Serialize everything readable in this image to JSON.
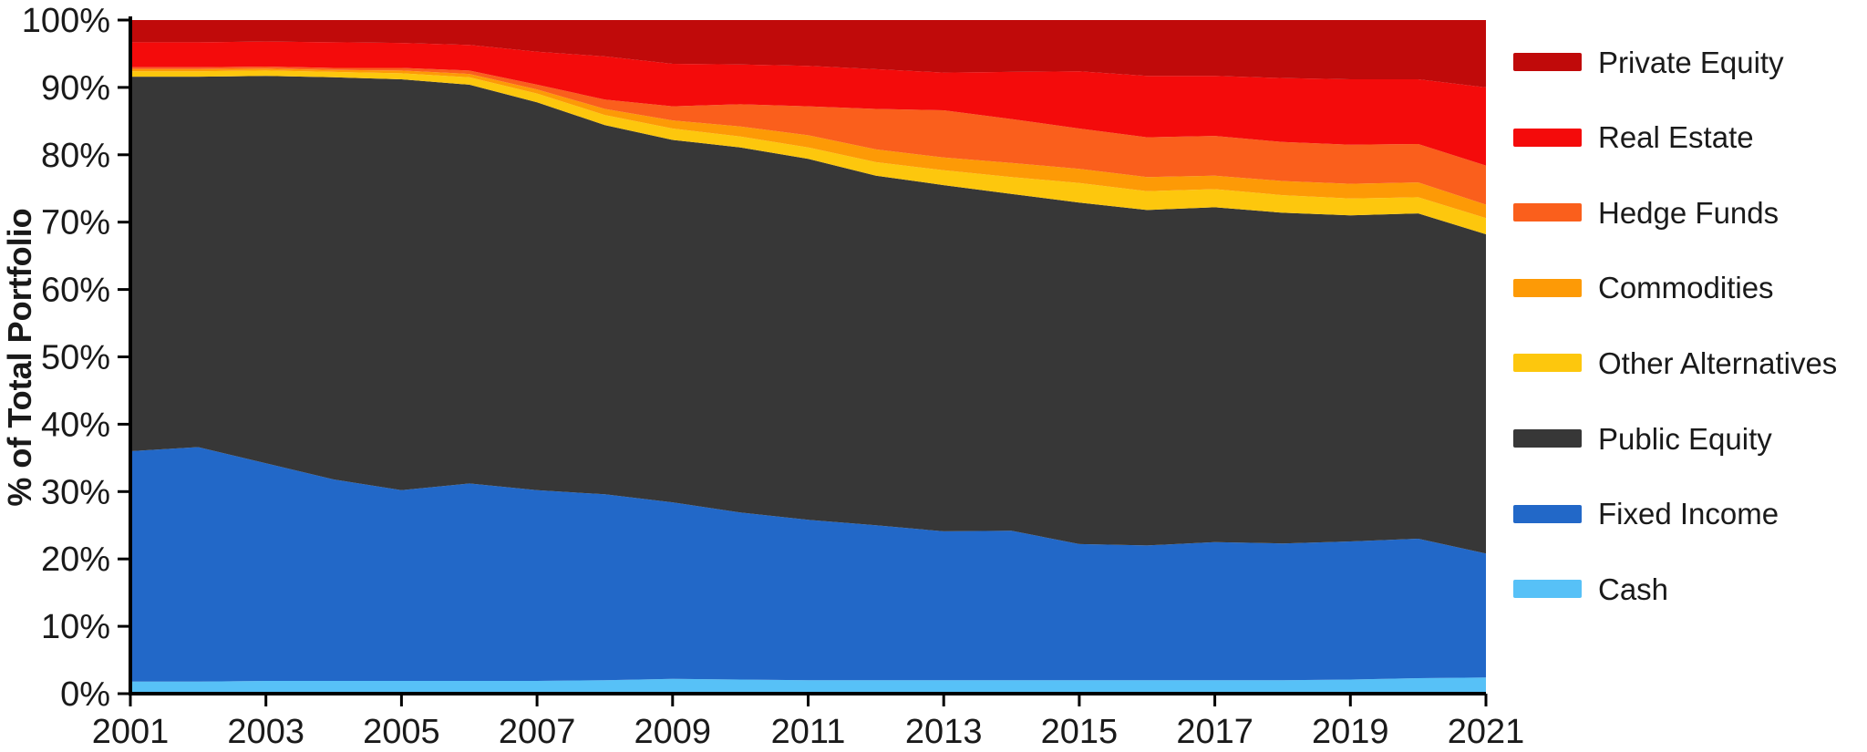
{
  "chart_data": {
    "type": "area",
    "stacked": true,
    "title": "",
    "ylabel": "% of Total Portfolio",
    "ylim": [
      0,
      100
    ],
    "ytick_step": 10,
    "ytick_suffix": "%",
    "grid": false,
    "legend_position": "right",
    "x": [
      2001,
      2002,
      2003,
      2004,
      2005,
      2006,
      2007,
      2008,
      2009,
      2010,
      2011,
      2012,
      2013,
      2014,
      2015,
      2016,
      2017,
      2018,
      2019,
      2020,
      2021
    ],
    "xtick_labels": [
      "2001",
      "2003",
      "2005",
      "2007",
      "2009",
      "2011",
      "2013",
      "2015",
      "2017",
      "2019",
      "2021"
    ],
    "series_bottom_to_top": [
      {
        "name": "Cash",
        "color": "#57C1F7",
        "values": [
          1.8,
          1.8,
          1.9,
          1.9,
          1.9,
          1.9,
          1.9,
          2.0,
          2.2,
          2.1,
          2.0,
          2.0,
          2.0,
          2.0,
          2.0,
          2.0,
          2.0,
          2.0,
          2.1,
          2.3,
          2.4
        ]
      },
      {
        "name": "Fixed Income",
        "color": "#2268C8",
        "values": [
          34.2,
          34.8,
          32.3,
          29.9,
          28.3,
          29.3,
          28.3,
          27.6,
          26.2,
          24.8,
          23.8,
          23.0,
          22.1,
          22.2,
          20.2,
          20.0,
          20.5,
          20.3,
          20.5,
          20.7,
          18.4
        ]
      },
      {
        "name": "Public Equity",
        "color": "#373737",
        "values": [
          55.6,
          55.0,
          57.5,
          59.7,
          61.0,
          59.2,
          57.6,
          54.8,
          53.8,
          54.2,
          53.6,
          51.9,
          51.4,
          50.0,
          50.7,
          49.8,
          49.7,
          49.1,
          48.4,
          48.3,
          47.4
        ]
      },
      {
        "name": "Other Alternatives",
        "color": "#FDC70D",
        "values": [
          0.8,
          0.8,
          0.8,
          0.8,
          0.9,
          1.1,
          1.3,
          1.5,
          1.7,
          1.6,
          1.7,
          2.0,
          2.2,
          2.5,
          2.9,
          2.8,
          2.7,
          2.6,
          2.5,
          2.4,
          2.4
        ]
      },
      {
        "name": "Commodities",
        "color": "#FD9A06",
        "values": [
          0.3,
          0.3,
          0.3,
          0.3,
          0.4,
          0.5,
          0.6,
          0.9,
          1.2,
          1.5,
          1.8,
          1.9,
          1.9,
          2.1,
          2.1,
          2.1,
          2.0,
          2.1,
          2.2,
          2.2,
          2.0
        ]
      },
      {
        "name": "Hedge Funds",
        "color": "#FA5F1C",
        "values": [
          0.3,
          0.3,
          0.3,
          0.3,
          0.4,
          0.5,
          0.7,
          1.4,
          2.1,
          3.3,
          4.3,
          6.0,
          7.0,
          6.5,
          6.0,
          5.9,
          5.9,
          5.8,
          5.8,
          5.7,
          5.8
        ]
      },
      {
        "name": "Real Estate",
        "color": "#F40B0B",
        "values": [
          3.7,
          3.7,
          3.7,
          3.8,
          3.7,
          3.8,
          4.9,
          6.4,
          6.3,
          5.9,
          6.0,
          5.9,
          5.6,
          7.0,
          8.5,
          9.1,
          8.9,
          9.5,
          9.7,
          9.6,
          11.6
        ]
      },
      {
        "name": "Private Equity",
        "color": "#C00A0A",
        "values": [
          3.3,
          3.3,
          3.2,
          3.3,
          3.4,
          3.7,
          4.7,
          5.4,
          6.5,
          6.6,
          6.8,
          7.3,
          7.8,
          7.7,
          7.6,
          8.3,
          8.3,
          8.6,
          8.8,
          8.8,
          10.0
        ]
      }
    ]
  },
  "legend": {
    "items": [
      {
        "label": "Private Equity",
        "color": "#C00A0A"
      },
      {
        "label": "Real Estate",
        "color": "#F40B0B"
      },
      {
        "label": "Hedge Funds",
        "color": "#FA5F1C"
      },
      {
        "label": "Commodities",
        "color": "#FD9A06"
      },
      {
        "label": "Other Alternatives",
        "color": "#FDC70D"
      },
      {
        "label": "Public Equity",
        "color": "#373737"
      },
      {
        "label": "Fixed Income",
        "color": "#2268C8"
      },
      {
        "label": "Cash",
        "color": "#57C1F7"
      }
    ]
  },
  "axes": {
    "y_tick_labels": [
      "0%",
      "10%",
      "20%",
      "30%",
      "40%",
      "50%",
      "60%",
      "70%",
      "80%",
      "90%",
      "100%"
    ],
    "axis_color": "#000000",
    "text_color": "#1a1a1a"
  }
}
